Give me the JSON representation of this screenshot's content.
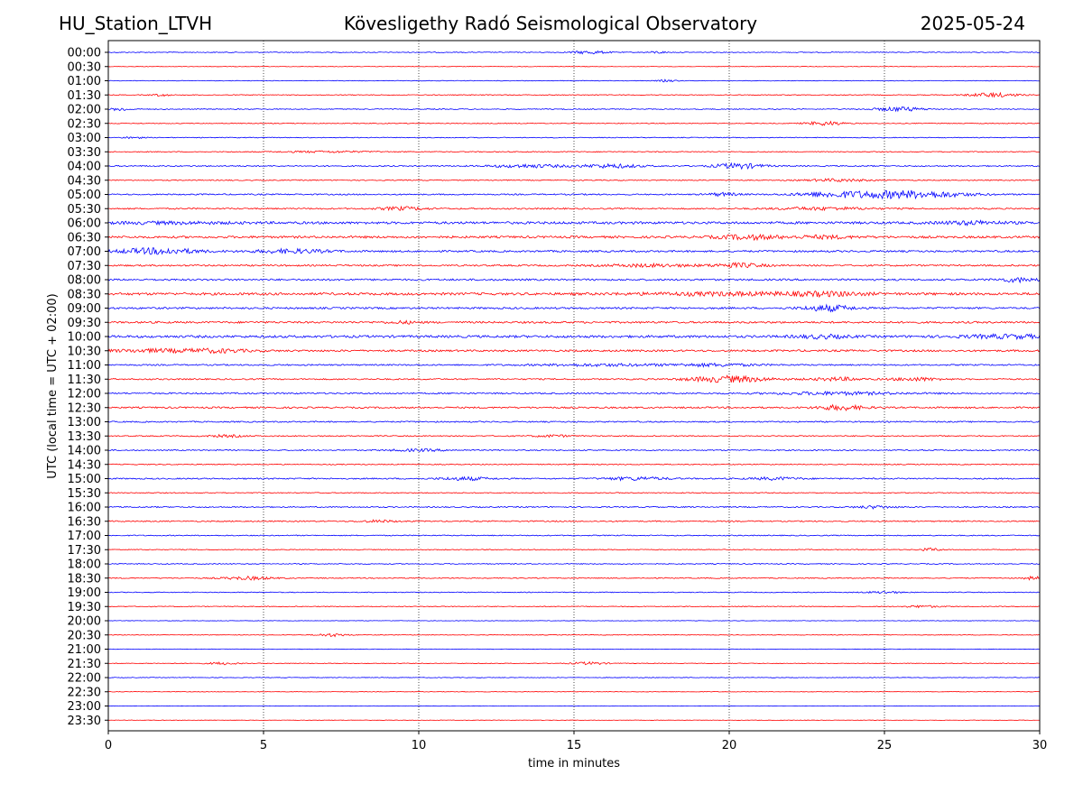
{
  "header": {
    "station": "HU_Station_LTVH",
    "observatory": "Kövesligethy Radó Seismological Observatory",
    "date": "2025-05-24"
  },
  "chart_data": {
    "type": "line",
    "subtype": "helicorder",
    "xlabel": "time in minutes",
    "ylabel": "UTC (local time = UTC + 02:00)",
    "xlim": [
      0,
      30
    ],
    "x_ticks": [
      0,
      5,
      10,
      15,
      20,
      25,
      30
    ],
    "grid": "vertical dotted at 5-minute ticks",
    "colors": {
      "even_rows": "#0000ff",
      "odd_rows": "#ff0000"
    },
    "rows": [
      {
        "label": "00:00",
        "noise": 0.8,
        "bursts": [
          [
            15.5,
            0.6,
            3
          ],
          [
            17.7,
            0.3,
            2
          ]
        ]
      },
      {
        "label": "00:30",
        "noise": 0.5,
        "bursts": []
      },
      {
        "label": "01:00",
        "noise": 0.6,
        "bursts": [
          [
            18.0,
            0.3,
            2
          ]
        ]
      },
      {
        "label": "01:30",
        "noise": 0.8,
        "bursts": [
          [
            1.7,
            0.3,
            2
          ],
          [
            28.5,
            0.8,
            4
          ]
        ]
      },
      {
        "label": "02:00",
        "noise": 0.9,
        "bursts": [
          [
            0.4,
            0.3,
            3
          ],
          [
            25.5,
            0.8,
            4
          ]
        ]
      },
      {
        "label": "02:30",
        "noise": 0.8,
        "bursts": [
          [
            23.1,
            0.6,
            4
          ]
        ]
      },
      {
        "label": "03:00",
        "noise": 0.8,
        "bursts": [
          [
            0.8,
            0.3,
            2
          ]
        ]
      },
      {
        "label": "03:30",
        "noise": 0.9,
        "bursts": [
          [
            7.0,
            1.5,
            1.5
          ]
        ]
      },
      {
        "label": "04:00",
        "noise": 1.2,
        "bursts": [
          [
            13.5,
            1.2,
            3
          ],
          [
            16.2,
            1.0,
            3.5
          ],
          [
            20.3,
            0.8,
            5
          ]
        ]
      },
      {
        "label": "04:30",
        "noise": 1.0,
        "bursts": [
          [
            23.5,
            1.0,
            2.5
          ]
        ]
      },
      {
        "label": "05:00",
        "noise": 1.3,
        "bursts": [
          [
            19.8,
            0.5,
            3
          ],
          [
            23.0,
            1.0,
            3
          ],
          [
            24.5,
            1.5,
            5
          ],
          [
            26.3,
            1.5,
            5.5
          ]
        ]
      },
      {
        "label": "05:30",
        "noise": 1.4,
        "bursts": [
          [
            9.5,
            0.8,
            3
          ],
          [
            23.0,
            1.5,
            2.5
          ]
        ]
      },
      {
        "label": "06:00",
        "noise": 2.4,
        "bursts": [
          [
            2.0,
            2.0,
            1.5
          ],
          [
            27.8,
            1.0,
            3
          ]
        ]
      },
      {
        "label": "06:30",
        "noise": 2.2,
        "bursts": [
          [
            20.6,
            1.0,
            4
          ],
          [
            23.0,
            1.0,
            2.5
          ]
        ]
      },
      {
        "label": "07:00",
        "noise": 1.8,
        "bursts": [
          [
            1.6,
            1.3,
            5.5
          ],
          [
            5.9,
            1.2,
            3.5
          ]
        ]
      },
      {
        "label": "07:30",
        "noise": 1.6,
        "bursts": [
          [
            17.5,
            1.5,
            2.5
          ],
          [
            20.3,
            0.8,
            4
          ]
        ]
      },
      {
        "label": "08:00",
        "noise": 1.8,
        "bursts": [
          [
            29.3,
            0.6,
            4
          ]
        ]
      },
      {
        "label": "08:30",
        "noise": 2.4,
        "bursts": [
          [
            20.0,
            3.0,
            2.5
          ],
          [
            23.2,
            1.2,
            3
          ]
        ]
      },
      {
        "label": "09:00",
        "noise": 1.8,
        "bursts": [
          [
            23.2,
            0.8,
            5.5
          ]
        ]
      },
      {
        "label": "09:30",
        "noise": 1.9,
        "bursts": [
          [
            9.5,
            0.5,
            2
          ]
        ]
      },
      {
        "label": "10:00",
        "noise": 2.4,
        "bursts": [
          [
            23.0,
            0.8,
            3
          ],
          [
            29.0,
            1.5,
            3
          ]
        ]
      },
      {
        "label": "10:30",
        "noise": 1.9,
        "bursts": [
          [
            1.5,
            1.5,
            2.5
          ],
          [
            3.5,
            1.0,
            3
          ]
        ]
      },
      {
        "label": "11:00",
        "noise": 1.4,
        "bursts": [
          [
            15.8,
            2.0,
            2
          ],
          [
            19.5,
            1.5,
            2.5
          ]
        ]
      },
      {
        "label": "11:30",
        "noise": 1.4,
        "bursts": [
          [
            20.0,
            1.3,
            6
          ],
          [
            23.5,
            0.8,
            3
          ],
          [
            26.0,
            0.8,
            3
          ]
        ]
      },
      {
        "label": "12:00",
        "noise": 1.5,
        "bursts": [
          [
            23.5,
            2.0,
            2.5
          ]
        ]
      },
      {
        "label": "12:30",
        "noise": 1.6,
        "bursts": [
          [
            23.6,
            0.8,
            4.5
          ]
        ]
      },
      {
        "label": "13:00",
        "noise": 1.3,
        "bursts": []
      },
      {
        "label": "13:30",
        "noise": 1.1,
        "bursts": [
          [
            3.8,
            0.6,
            2
          ],
          [
            14.3,
            0.6,
            2
          ]
        ]
      },
      {
        "label": "14:00",
        "noise": 1.1,
        "bursts": [
          [
            10.0,
            1.0,
            2
          ]
        ]
      },
      {
        "label": "14:30",
        "noise": 1.0,
        "bursts": []
      },
      {
        "label": "15:00",
        "noise": 1.3,
        "bursts": [
          [
            11.5,
            0.8,
            3
          ],
          [
            17.0,
            1.0,
            3
          ],
          [
            21.5,
            0.8,
            2.5
          ]
        ]
      },
      {
        "label": "15:30",
        "noise": 0.9,
        "bursts": []
      },
      {
        "label": "16:00",
        "noise": 1.2,
        "bursts": [
          [
            24.7,
            0.6,
            2.5
          ]
        ]
      },
      {
        "label": "16:30",
        "noise": 1.2,
        "bursts": [
          [
            8.7,
            0.6,
            2
          ]
        ]
      },
      {
        "label": "17:00",
        "noise": 1.0,
        "bursts": []
      },
      {
        "label": "17:30",
        "noise": 0.9,
        "bursts": [
          [
            26.5,
            0.3,
            3
          ]
        ]
      },
      {
        "label": "18:00",
        "noise": 0.9,
        "bursts": []
      },
      {
        "label": "18:30",
        "noise": 1.0,
        "bursts": [
          [
            4.5,
            0.8,
            3
          ],
          [
            29.8,
            0.3,
            3
          ]
        ]
      },
      {
        "label": "19:00",
        "noise": 0.8,
        "bursts": [
          [
            25.0,
            0.6,
            2
          ]
        ]
      },
      {
        "label": "19:30",
        "noise": 0.8,
        "bursts": [
          [
            26.2,
            0.6,
            2
          ]
        ]
      },
      {
        "label": "20:00",
        "noise": 0.5,
        "bursts": []
      },
      {
        "label": "20:30",
        "noise": 0.6,
        "bursts": [
          [
            7.2,
            0.5,
            3
          ]
        ]
      },
      {
        "label": "21:00",
        "noise": 0.5,
        "bursts": []
      },
      {
        "label": "21:30",
        "noise": 0.6,
        "bursts": [
          [
            3.7,
            0.5,
            2.5
          ],
          [
            15.5,
            0.6,
            2.5
          ]
        ]
      },
      {
        "label": "22:00",
        "noise": 0.6,
        "bursts": []
      },
      {
        "label": "22:30",
        "noise": 0.5,
        "bursts": []
      },
      {
        "label": "23:00",
        "noise": 0.4,
        "bursts": []
      },
      {
        "label": "23:30",
        "noise": 0.4,
        "bursts": []
      }
    ]
  }
}
